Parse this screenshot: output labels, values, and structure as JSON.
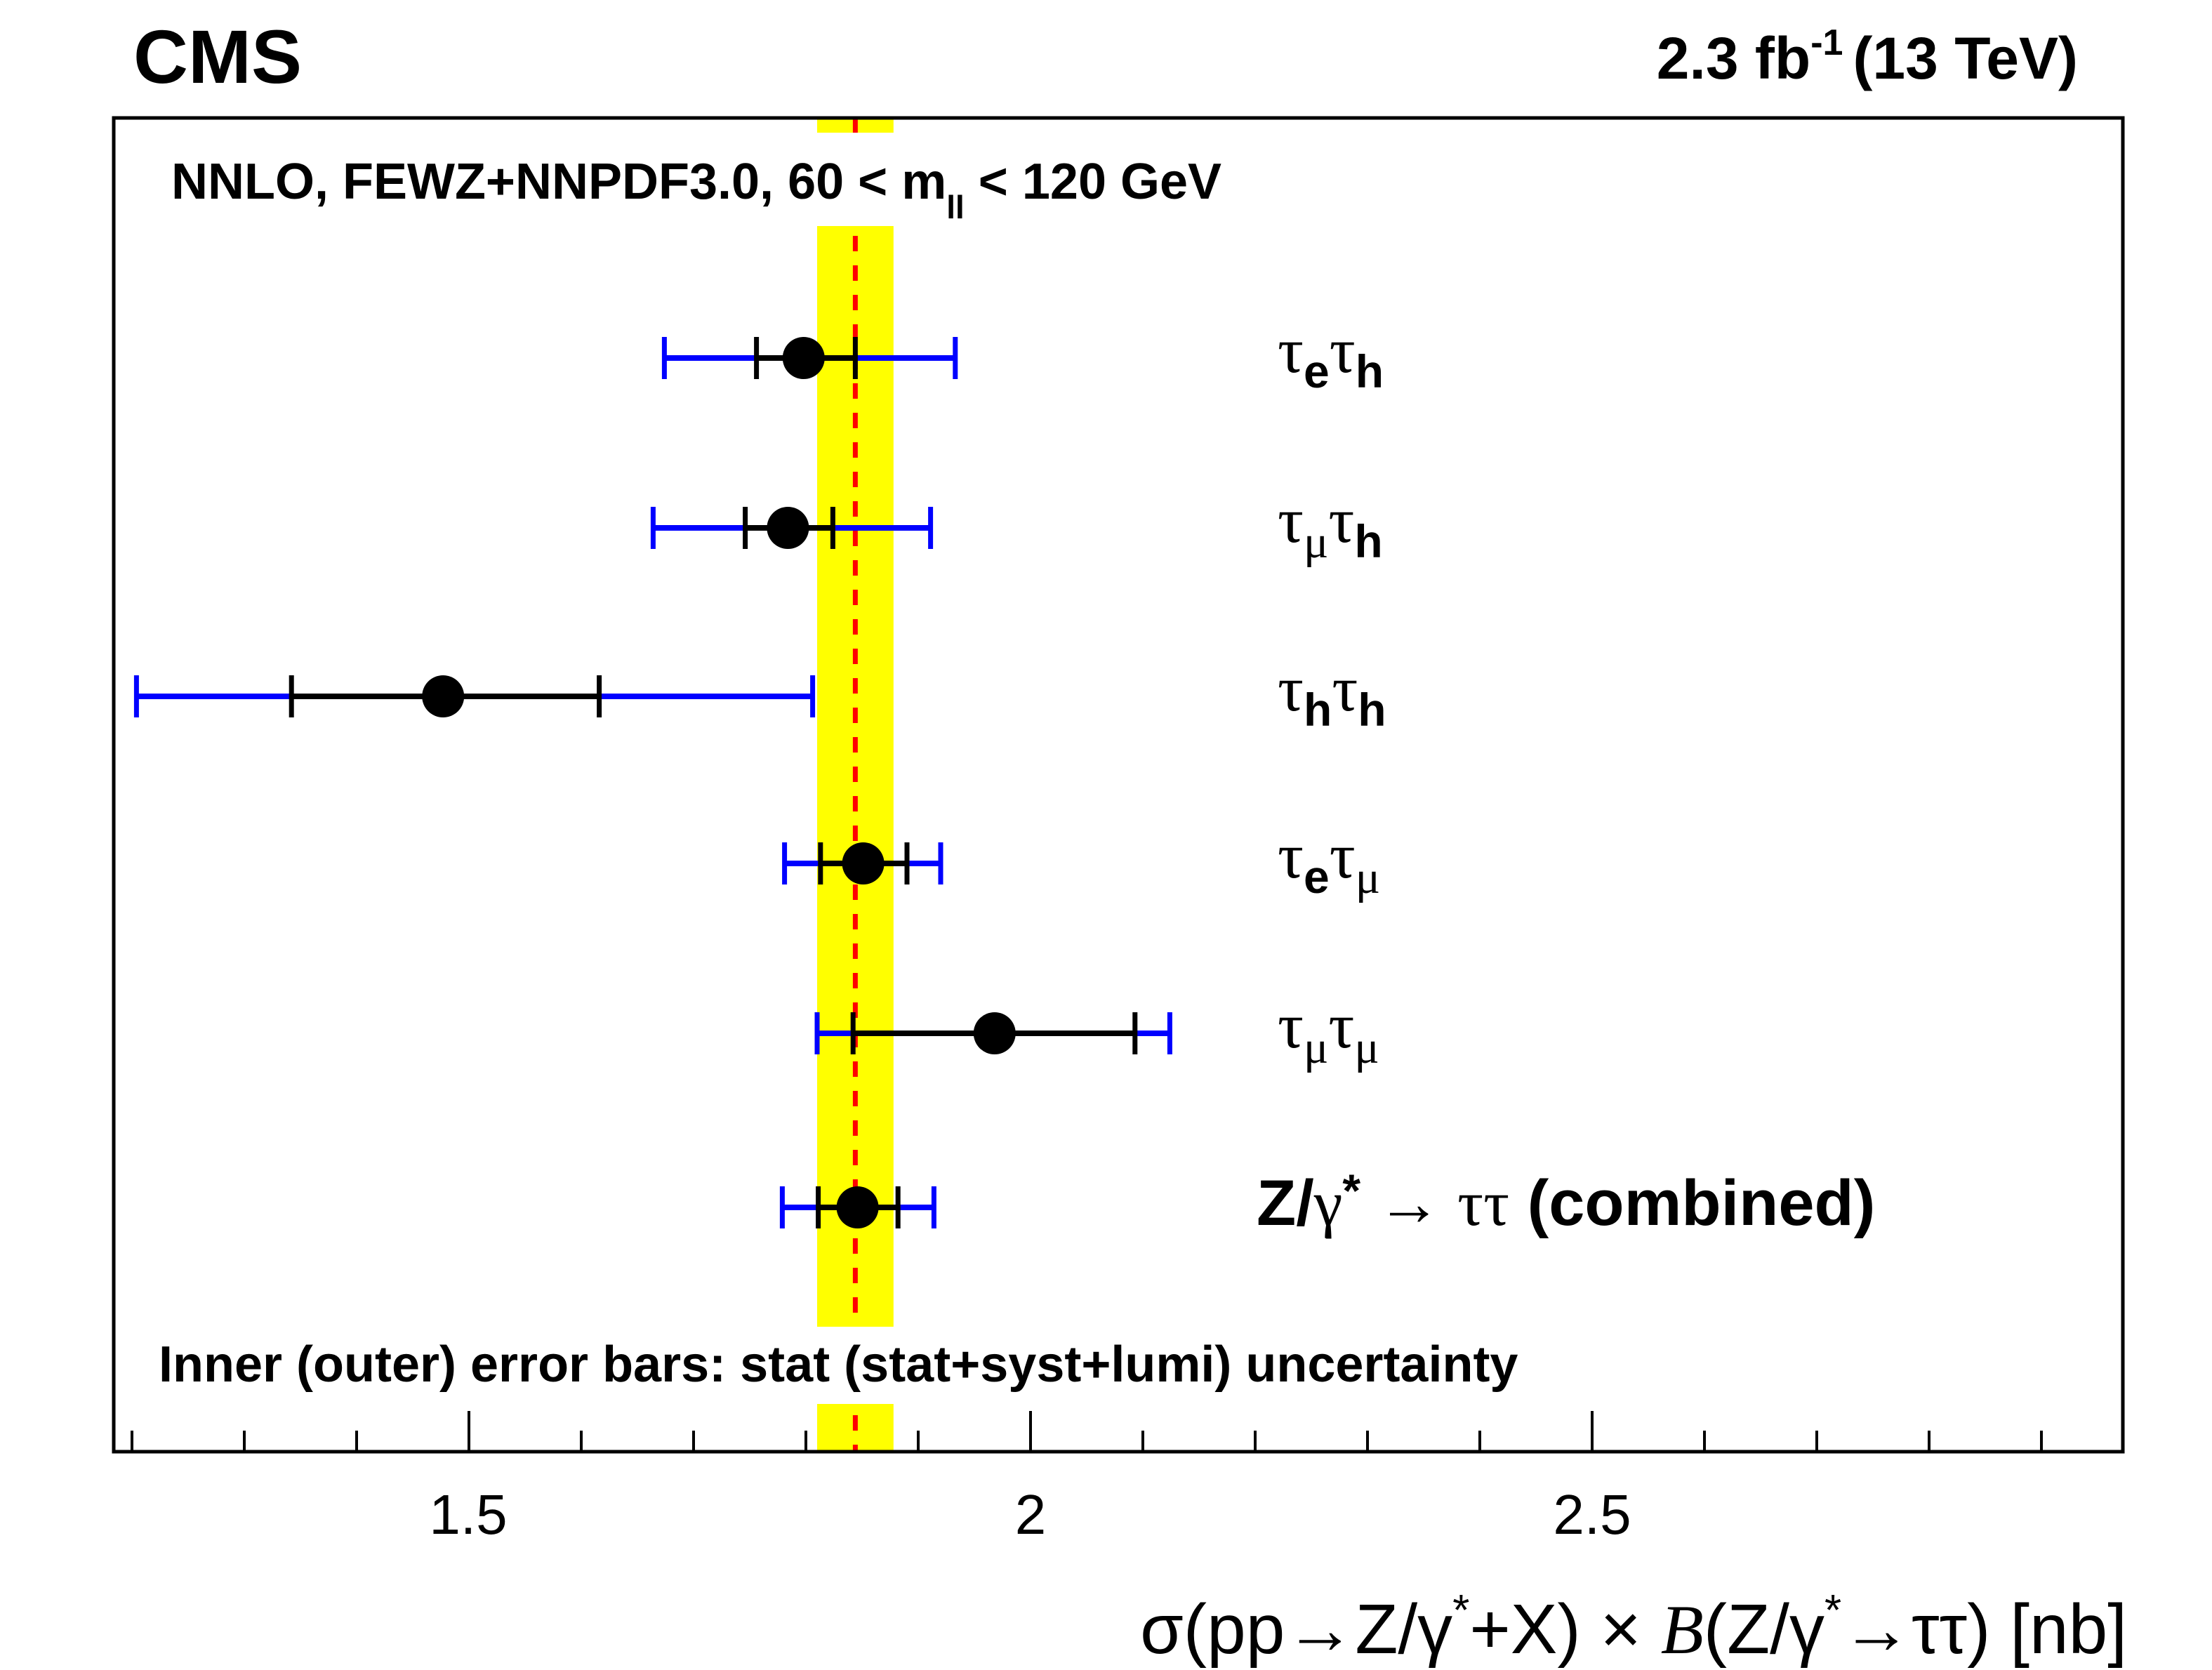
{
  "header": {
    "experiment": "CMS",
    "luminosity_value": "2.3 fb",
    "luminosity_sup": "-1",
    "energy": "(13 TeV)"
  },
  "annotations": {
    "theory_prefix": "NNLO, FEWZ+NNPDF3.0, 60 < m",
    "theory_sub": "ll",
    "theory_suffix": " < 120 GeV",
    "footnote": "Inner (outer) error bars: stat (stat+syst+lumi) uncertainty"
  },
  "axis": {
    "xlabel_parts": [
      "σ(pp→Z/γ",
      "*",
      "+X) × ",
      "B",
      "(Z/γ",
      "*",
      "→ττ) [nb]"
    ],
    "tick_labels": [
      "1.5",
      "2",
      "2.5"
    ]
  },
  "colors": {
    "theory_band": "#ffff00",
    "theory_line": "#ff0000",
    "outer_error": "#0000ff",
    "inner_error": "#000000",
    "marker": "#000000",
    "frame": "#000000"
  },
  "chart_data": {
    "type": "scatter",
    "orientation": "horizontal forest plot",
    "title": "CMS",
    "subtitle": "2.3 fb^-1 (13 TeV)",
    "xlabel": "σ(pp→Z/γ*+X) × B(Z/γ*→ττ) [nb]",
    "ylabel": "",
    "xlim": [
      1.184,
      2.98
    ],
    "major_ticks": [
      1.5,
      2.0,
      2.5
    ],
    "minor_tick_step": 0.1,
    "grid": false,
    "theory": {
      "label": "NNLO, FEWZ+NNPDF3.0, 60 < m_ll < 120 GeV",
      "central": 1.844,
      "band": [
        1.81,
        1.878
      ]
    },
    "legend_note": "Inner (outer) error bars: stat (stat+syst+lumi) uncertainty",
    "series": [
      {
        "name": "τeτh",
        "label_main": "τ",
        "sub1": "e",
        "label_main2": "τ",
        "sub2": "h",
        "sub1_greek": false,
        "sub2_greek": false,
        "value": 1.798,
        "stat": [
          1.756,
          1.844
        ],
        "total": [
          1.674,
          1.933
        ]
      },
      {
        "name": "τμτh",
        "label_main": "τ",
        "sub1": "μ",
        "label_main2": "τ",
        "sub2": "h",
        "sub1_greek": true,
        "sub2_greek": false,
        "value": 1.784,
        "stat": [
          1.746,
          1.824
        ],
        "total": [
          1.664,
          1.911
        ]
      },
      {
        "name": "τhτh",
        "label_main": "τ",
        "sub1": "h",
        "label_main2": "τ",
        "sub2": "h",
        "sub1_greek": false,
        "sub2_greek": false,
        "value": 1.477,
        "stat": [
          1.342,
          1.616
        ],
        "total": [
          1.204,
          1.806
        ]
      },
      {
        "name": "τeτμ",
        "label_main": "τ",
        "sub1": "e",
        "label_main2": "τ",
        "sub2": "μ",
        "sub1_greek": false,
        "sub2_greek": true,
        "value": 1.851,
        "stat": [
          1.813,
          1.89
        ],
        "total": [
          1.781,
          1.92
        ]
      },
      {
        "name": "τμτμ",
        "label_main": "τ",
        "sub1": "μ",
        "label_main2": "τ",
        "sub2": "μ",
        "sub1_greek": true,
        "sub2_greek": true,
        "value": 1.968,
        "stat": [
          1.842,
          2.093
        ],
        "total": [
          1.81,
          2.124
        ]
      },
      {
        "name": "Z/γ* → ττ (combined)",
        "combined": true,
        "value": 1.846,
        "stat": [
          1.811,
          1.882
        ],
        "total": [
          1.779,
          1.914
        ]
      }
    ],
    "combined_label": {
      "z": "Z/",
      "gamma": "γ",
      "star": "*",
      "arrow": "→",
      "tautau": "ττ",
      "text": "(combined)"
    }
  }
}
